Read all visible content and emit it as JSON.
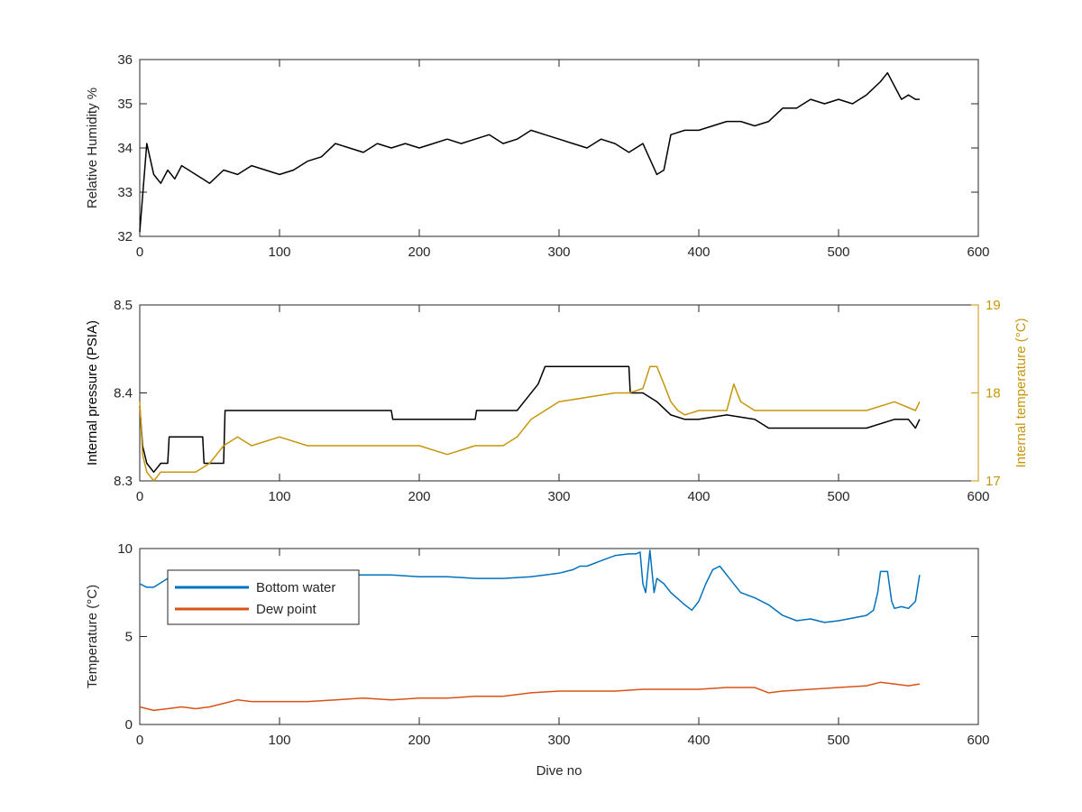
{
  "chart_data": [
    {
      "type": "line",
      "ylabel": "Relative Humidity %",
      "xlabel": "",
      "xlim": [
        0,
        600
      ],
      "ylim": [
        32,
        36
      ],
      "xticks": [
        "0",
        "100",
        "200",
        "300",
        "400",
        "500",
        "600"
      ],
      "yticks": [
        "32",
        "33",
        "34",
        "35",
        "36"
      ],
      "series": [
        {
          "color": "#000000",
          "x": [
            0,
            5,
            10,
            15,
            20,
            25,
            30,
            35,
            40,
            45,
            50,
            60,
            70,
            80,
            90,
            100,
            110,
            120,
            130,
            140,
            150,
            160,
            170,
            180,
            190,
            200,
            210,
            220,
            230,
            240,
            250,
            260,
            270,
            280,
            290,
            300,
            310,
            320,
            330,
            340,
            350,
            360,
            370,
            375,
            380,
            390,
            400,
            410,
            420,
            430,
            440,
            450,
            460,
            470,
            480,
            490,
            500,
            510,
            520,
            530,
            535,
            540,
            545,
            550,
            555,
            558
          ],
          "y": [
            32.1,
            34.1,
            33.4,
            33.2,
            33.5,
            33.3,
            33.6,
            33.5,
            33.4,
            33.3,
            33.2,
            33.5,
            33.4,
            33.6,
            33.5,
            33.4,
            33.5,
            33.7,
            33.8,
            34.1,
            34.0,
            33.9,
            34.1,
            34.0,
            34.1,
            34.0,
            34.1,
            34.2,
            34.1,
            34.2,
            34.3,
            34.1,
            34.2,
            34.4,
            34.3,
            34.2,
            34.1,
            34.0,
            34.2,
            34.1,
            33.9,
            34.1,
            33.4,
            33.5,
            34.3,
            34.4,
            34.4,
            34.5,
            34.6,
            34.6,
            34.5,
            34.6,
            34.9,
            34.9,
            35.1,
            35.0,
            35.1,
            35.0,
            35.2,
            35.5,
            35.7,
            35.4,
            35.1,
            35.2,
            35.1,
            35.1
          ]
        }
      ]
    },
    {
      "type": "line",
      "ylabel": "Internal pressure (PSIA)",
      "ylabel_right": "Internal temperature (°C)",
      "xlabel": "",
      "xlim": [
        0,
        600
      ],
      "ylim": [
        8.3,
        8.5
      ],
      "ylim_right": [
        17,
        19
      ],
      "xticks": [
        "0",
        "100",
        "200",
        "300",
        "400",
        "500",
        "600"
      ],
      "yticks": [
        "8.3",
        "8.4",
        "8.5"
      ],
      "yticks_right": [
        "17",
        "18",
        "19"
      ],
      "series": [
        {
          "axis": "left",
          "color": "#000000",
          "x": [
            0,
            2,
            5,
            10,
            15,
            20,
            21,
            30,
            40,
            45,
            46,
            55,
            60,
            61,
            100,
            150,
            180,
            181,
            230,
            240,
            241,
            270,
            275,
            285,
            290,
            300,
            350,
            351,
            360,
            370,
            380,
            390,
            400,
            420,
            440,
            450,
            470,
            480,
            500,
            520,
            540,
            550,
            555,
            558
          ],
          "y": [
            8.385,
            8.34,
            8.32,
            8.31,
            8.32,
            8.32,
            8.35,
            8.35,
            8.35,
            8.35,
            8.32,
            8.32,
            8.32,
            8.38,
            8.38,
            8.38,
            8.38,
            8.37,
            8.37,
            8.37,
            8.38,
            8.38,
            8.39,
            8.41,
            8.43,
            8.43,
            8.43,
            8.4,
            8.4,
            8.39,
            8.375,
            8.37,
            8.37,
            8.375,
            8.37,
            8.36,
            8.36,
            8.36,
            8.36,
            8.36,
            8.37,
            8.37,
            8.36,
            8.37
          ]
        },
        {
          "axis": "right",
          "color": "#C8960A",
          "x": [
            0,
            2,
            5,
            10,
            15,
            20,
            30,
            40,
            50,
            60,
            70,
            80,
            100,
            120,
            140,
            160,
            180,
            200,
            220,
            240,
            260,
            270,
            280,
            290,
            300,
            320,
            340,
            350,
            360,
            365,
            370,
            375,
            380,
            385,
            390,
            400,
            420,
            425,
            430,
            440,
            460,
            480,
            500,
            520,
            540,
            555,
            558
          ],
          "y": [
            17.9,
            17.3,
            17.1,
            17.0,
            17.1,
            17.1,
            17.1,
            17.1,
            17.2,
            17.4,
            17.5,
            17.4,
            17.5,
            17.4,
            17.4,
            17.4,
            17.4,
            17.4,
            17.3,
            17.4,
            17.4,
            17.5,
            17.7,
            17.8,
            17.9,
            17.95,
            18.0,
            18.0,
            18.05,
            18.3,
            18.3,
            18.1,
            17.9,
            17.8,
            17.75,
            17.8,
            17.8,
            18.1,
            17.9,
            17.8,
            17.8,
            17.8,
            17.8,
            17.8,
            17.9,
            17.8,
            17.9
          ]
        }
      ]
    },
    {
      "type": "line",
      "ylabel": "Temperature (°C)",
      "xlabel": "Dive no",
      "xlim": [
        0,
        600
      ],
      "ylim": [
        0,
        10
      ],
      "xticks": [
        "0",
        "100",
        "200",
        "300",
        "400",
        "500",
        "600"
      ],
      "yticks": [
        "0",
        "5",
        "10"
      ],
      "legend": "top-left",
      "series": [
        {
          "name": "Bottom water",
          "color": "#0072BD",
          "x": [
            0,
            5,
            10,
            20,
            40,
            60,
            80,
            100,
            120,
            140,
            160,
            180,
            200,
            220,
            240,
            260,
            280,
            300,
            310,
            315,
            320,
            330,
            340,
            350,
            355,
            358,
            360,
            362,
            365,
            368,
            370,
            375,
            380,
            390,
            395,
            400,
            405,
            410,
            415,
            420,
            430,
            440,
            450,
            460,
            470,
            480,
            490,
            500,
            520,
            525,
            528,
            530,
            535,
            538,
            540,
            545,
            550,
            555,
            558
          ],
          "y": [
            8.0,
            7.8,
            7.8,
            8.3,
            8.4,
            8.5,
            8.6,
            8.5,
            8.5,
            8.5,
            8.5,
            8.5,
            8.4,
            8.4,
            8.3,
            8.3,
            8.4,
            8.6,
            8.8,
            9.0,
            9.0,
            9.3,
            9.6,
            9.7,
            9.7,
            9.8,
            8.0,
            7.5,
            9.9,
            7.5,
            8.3,
            8.0,
            7.5,
            6.8,
            6.5,
            7.0,
            8.0,
            8.8,
            9.0,
            8.5,
            7.5,
            7.2,
            6.8,
            6.2,
            5.9,
            6.0,
            5.8,
            5.9,
            6.2,
            6.5,
            7.5,
            8.7,
            8.7,
            7.0,
            6.6,
            6.7,
            6.6,
            7.0,
            8.5
          ]
        },
        {
          "name": "Dew point",
          "color": "#D95319",
          "x": [
            0,
            10,
            20,
            30,
            40,
            50,
            60,
            70,
            80,
            100,
            120,
            140,
            160,
            180,
            200,
            220,
            240,
            260,
            280,
            300,
            320,
            340,
            360,
            380,
            400,
            420,
            440,
            450,
            460,
            480,
            500,
            520,
            530,
            540,
            550,
            558
          ],
          "y": [
            1.0,
            0.8,
            0.9,
            1.0,
            0.9,
            1.0,
            1.2,
            1.4,
            1.3,
            1.3,
            1.3,
            1.4,
            1.5,
            1.4,
            1.5,
            1.5,
            1.6,
            1.6,
            1.8,
            1.9,
            1.9,
            1.9,
            2.0,
            2.0,
            2.0,
            2.1,
            2.1,
            1.8,
            1.9,
            2.0,
            2.1,
            2.2,
            2.4,
            2.3,
            2.2,
            2.3
          ]
        }
      ]
    }
  ]
}
